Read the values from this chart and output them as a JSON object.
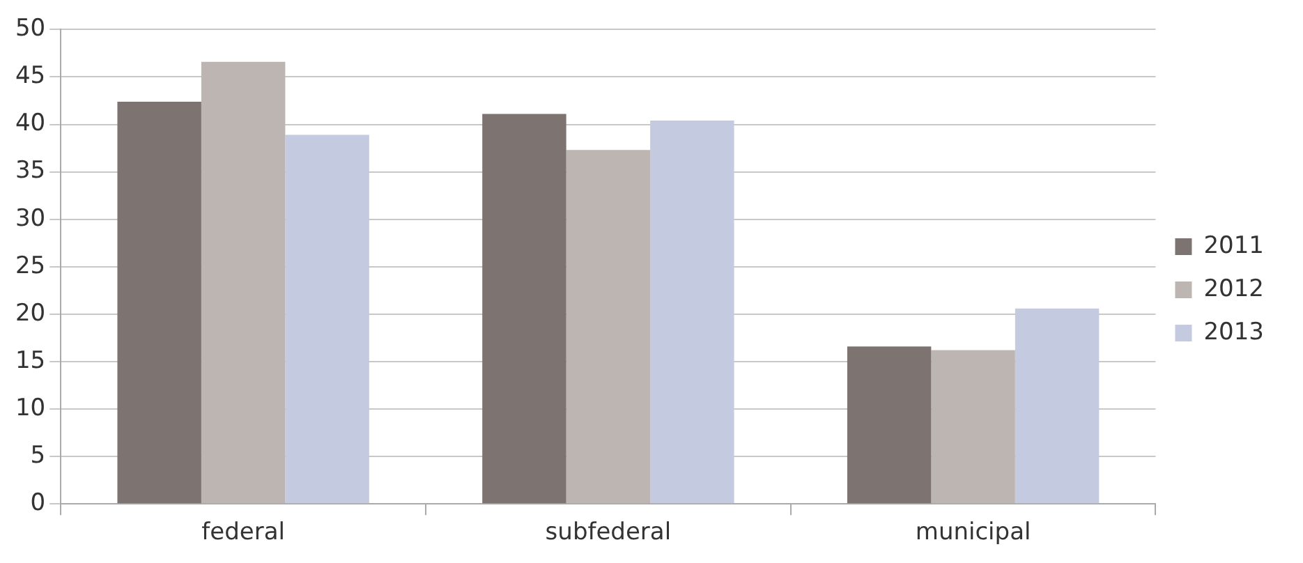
{
  "chart_data": {
    "type": "bar",
    "categories": [
      "federal",
      "subfederal",
      "municipal"
    ],
    "series": [
      {
        "name": "2011",
        "color": "#7d7472",
        "values": [
          42.4,
          41.1,
          16.6
        ]
      },
      {
        "name": "2012",
        "color": "#bdb5b2",
        "values": [
          46.6,
          37.3,
          16.2
        ]
      },
      {
        "name": "2013",
        "color": "#c4cbe0",
        "values": [
          38.9,
          40.4,
          20.6
        ]
      }
    ],
    "ylim": [
      0,
      50
    ],
    "yticks": [
      0,
      5,
      10,
      15,
      20,
      25,
      30,
      35,
      40,
      45,
      50
    ],
    "grid": "y",
    "legend": "right"
  }
}
